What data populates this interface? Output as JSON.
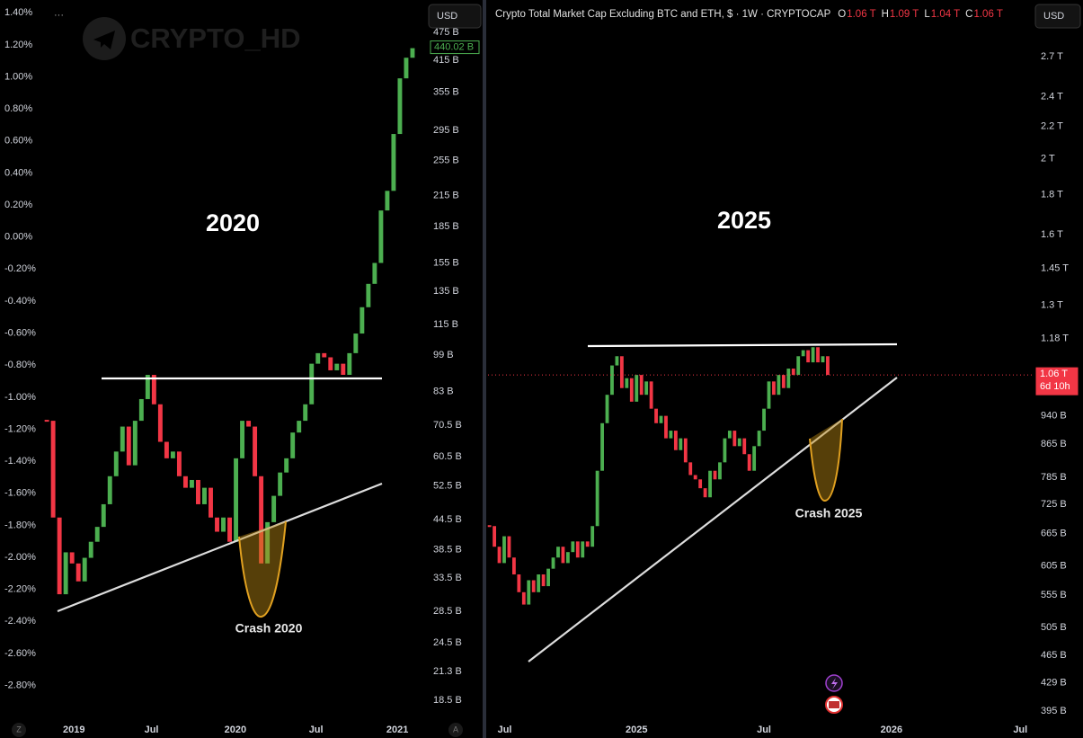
{
  "chart_data": [
    {
      "type": "candlestick",
      "watermark": "CRYPTO_HD",
      "currency": "USD",
      "annotations": [
        "2020",
        "Crash 2020"
      ],
      "log": true,
      "colors": {
        "up": "#4caf50",
        "down": "#f23645"
      },
      "values": [
        72,
        45,
        31,
        38,
        36,
        33,
        37,
        40,
        43,
        48,
        55,
        62,
        70,
        58,
        72,
        80,
        90,
        78,
        65,
        60,
        62,
        55,
        52,
        54,
        48,
        52,
        45,
        42,
        45,
        40,
        60,
        72,
        70,
        55,
        36,
        44,
        50,
        56,
        60,
        68,
        72,
        78,
        95,
        100,
        98,
        92,
        95,
        90,
        100,
        110,
        125,
        140,
        155,
        200,
        220,
        290,
        380,
        420,
        440
      ],
      "last_price": {
        "value": 440.02,
        "label": "440.02 B"
      },
      "xlim": [
        -0.3,
        60
      ],
      "xticks": [
        {
          "value": 4.3,
          "label": "2019"
        },
        {
          "value": 16.6,
          "label": "Jul"
        },
        {
          "value": 29.9,
          "label": "2020"
        },
        {
          "value": 42.7,
          "label": "Jul"
        },
        {
          "value": 55.6,
          "label": "2021"
        }
      ],
      "ylim": [
        16.9,
        556
      ],
      "yticks": [
        {
          "value": 475,
          "label": "475 B"
        },
        {
          "value": 415,
          "label": "415 B"
        },
        {
          "value": 355,
          "label": "355 B"
        },
        {
          "value": 295,
          "label": "295 B"
        },
        {
          "value": 255,
          "label": "255 B"
        },
        {
          "value": 215,
          "label": "215 B"
        },
        {
          "value": 185,
          "label": "185 B"
        },
        {
          "value": 155,
          "label": "155 B"
        },
        {
          "value": 135,
          "label": "135 B"
        },
        {
          "value": 115,
          "label": "115 B"
        },
        {
          "value": 99,
          "label": "99 B"
        },
        {
          "value": 83,
          "label": "83 B"
        },
        {
          "value": 70.5,
          "label": "70.5 B"
        },
        {
          "value": 60.5,
          "label": "60.5 B"
        },
        {
          "value": 52.5,
          "label": "52.5 B"
        },
        {
          "value": 44.5,
          "label": "44.5 B"
        },
        {
          "value": 38.5,
          "label": "38.5 B"
        },
        {
          "value": 33.5,
          "label": "33.5 B"
        },
        {
          "value": 28.5,
          "label": "28.5 B"
        },
        {
          "value": 24.5,
          "label": "24.5 B"
        },
        {
          "value": 21.3,
          "label": "21.3 B"
        },
        {
          "value": 18.5,
          "label": "18.5 B"
        }
      ],
      "y2lim": [
        -3.01,
        1.48
      ],
      "y2ticks": [
        {
          "value": 1.4,
          "label": "1.40%"
        },
        {
          "value": 1.2,
          "label": "1.20%"
        },
        {
          "value": 1.0,
          "label": "1.00%"
        },
        {
          "value": 0.8,
          "label": "0.80%"
        },
        {
          "value": 0.6,
          "label": "0.60%"
        },
        {
          "value": 0.4,
          "label": "0.40%"
        },
        {
          "value": 0.2,
          "label": "0.20%"
        },
        {
          "value": 0,
          "label": "0.00%"
        },
        {
          "value": -0.2,
          "label": "-0.20%"
        },
        {
          "value": -0.4,
          "label": "-0.40%"
        },
        {
          "value": -0.6,
          "label": "-0.60%"
        },
        {
          "value": -0.8,
          "label": "-0.80%"
        },
        {
          "value": -1.0,
          "label": "-1.00%"
        },
        {
          "value": -1.2,
          "label": "-1.20%"
        },
        {
          "value": -1.4,
          "label": "-1.40%"
        },
        {
          "value": -1.6,
          "label": "-1.60%"
        },
        {
          "value": -1.8,
          "label": "-1.80%"
        },
        {
          "value": -2.0,
          "label": "-2.00%"
        },
        {
          "value": -2.2,
          "label": "-2.20%"
        },
        {
          "value": -2.4,
          "label": "-2.40%"
        },
        {
          "value": -2.6,
          "label": "-2.60%"
        },
        {
          "value": -2.8,
          "label": "-2.80%"
        }
      ]
    },
    {
      "type": "candlestick",
      "title": "Crypto Total Market Cap Excluding BTC and ETH, $ · 1W · CRYPTOCAP",
      "currency": "USD",
      "ohlc": [
        {
          "key": "O",
          "value": "1.06 T"
        },
        {
          "key": "H",
          "value": "1.09 T"
        },
        {
          "key": "L",
          "value": "1.04 T"
        },
        {
          "key": "C",
          "value": "1.06 T"
        }
      ],
      "annotations": [
        "2025",
        "Crash 2025"
      ],
      "log": true,
      "colors": {
        "up": "#4caf50",
        "down": "#f23645"
      },
      "values": [
        680,
        640,
        610,
        660,
        620,
        590,
        560,
        540,
        580,
        560,
        590,
        570,
        600,
        620,
        640,
        610,
        630,
        650,
        620,
        650,
        640,
        680,
        800,
        920,
        1000,
        1090,
        1120,
        1020,
        1050,
        980,
        1060,
        1000,
        1040,
        960,
        920,
        940,
        880,
        900,
        850,
        880,
        820,
        790,
        780,
        760,
        740,
        800,
        780,
        820,
        880,
        900,
        860,
        880,
        840,
        800,
        860,
        900,
        960,
        1040,
        1000,
        1060,
        1020,
        1080,
        1060,
        1120,
        1140,
        1100,
        1150,
        1100,
        1120,
        1060
      ],
      "last_price": {
        "value": 1060,
        "label": "1.06 T"
      },
      "countdown": "6d 10h",
      "xlim": [
        -0.3,
        111
      ],
      "xticks": [
        {
          "value": 3.1,
          "label": "Jul"
        },
        {
          "value": 30,
          "label": "2025"
        },
        {
          "value": 56,
          "label": "Jul"
        },
        {
          "value": 82,
          "label": "2026"
        },
        {
          "value": 108.3,
          "label": "Jul"
        }
      ],
      "ylim": [
        385.7,
        3189
      ],
      "yticks": [
        {
          "value": 2700,
          "label": "2.7 T"
        },
        {
          "value": 2400,
          "label": "2.4 T"
        },
        {
          "value": 2200,
          "label": "2.2 T"
        },
        {
          "value": 2000,
          "label": "2 T"
        },
        {
          "value": 1800,
          "label": "1.8 T"
        },
        {
          "value": 1600,
          "label": "1.6 T"
        },
        {
          "value": 1450,
          "label": "1.45 T"
        },
        {
          "value": 1300,
          "label": "1.3 T"
        },
        {
          "value": 1180,
          "label": "1.18 T"
        },
        {
          "value": 940,
          "label": "940 B"
        },
        {
          "value": 865,
          "label": "865 B"
        },
        {
          "value": 785,
          "label": "785 B"
        },
        {
          "value": 725,
          "label": "725 B"
        },
        {
          "value": 665,
          "label": "665 B"
        },
        {
          "value": 605,
          "label": "605 B"
        },
        {
          "value": 555,
          "label": "555 B"
        },
        {
          "value": 505,
          "label": "505 B"
        },
        {
          "value": 465,
          "label": "465 B"
        },
        {
          "value": 429,
          "label": "429 B"
        },
        {
          "value": 395,
          "label": "395 B"
        }
      ]
    }
  ]
}
